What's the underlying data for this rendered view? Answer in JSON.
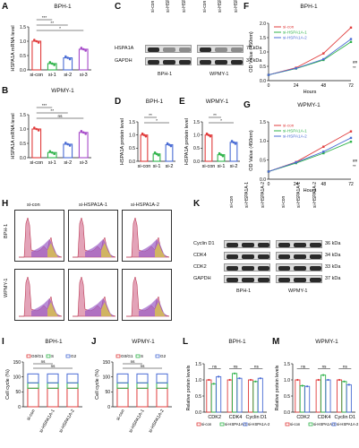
{
  "figure": {
    "A": {
      "letter": "A",
      "title": "BPH-1",
      "ylabel": "HSPA1A mRNA level",
      "yticks": [
        "0.0",
        "0.5",
        "1.0",
        "1.5"
      ],
      "ymax": 1.5,
      "categories": [
        "si-con",
        "si-1",
        "si-2",
        "si-3"
      ],
      "values": [
        1.0,
        0.22,
        0.42,
        0.72
      ],
      "colors": [
        "#e03c3c",
        "#2fb34a",
        "#4a6cd4",
        "#a64ac9"
      ],
      "sig": [
        "***",
        "**",
        "*"
      ]
    },
    "B": {
      "letter": "B",
      "title": "WPMY-1",
      "ylabel": "HSPA1A mRNA level",
      "yticks": [
        "0.0",
        "0.5",
        "1.0",
        "1.5"
      ],
      "ymax": 1.5,
      "categories": [
        "si-con",
        "si-1",
        "si-2",
        "si-3"
      ],
      "values": [
        1.0,
        0.18,
        0.47,
        0.88
      ],
      "colors": [
        "#e03c3c",
        "#2fb34a",
        "#4a6cd4",
        "#a64ac9"
      ],
      "sig": [
        "***",
        "**",
        "ns"
      ]
    },
    "C": {
      "letter": "C",
      "lanes": [
        "si-con",
        "si-HSPA1A-1",
        "si-HSPA1A-2",
        "si-con",
        "si-HSPA1A-1",
        "si-HSPA1A-2"
      ],
      "rows": [
        "HSPA1A",
        "GAPDH"
      ],
      "sizes": [
        "70 kDa",
        "37 kDa"
      ],
      "cells": [
        "BPH-1",
        "WPMY-1"
      ]
    },
    "D": {
      "letter": "D",
      "title": "BPH-1",
      "ylabel": "HSPA1A protein level",
      "yticks": [
        "0.0",
        "0.5",
        "1.0",
        "1.5"
      ],
      "ymax": 1.5,
      "categories": [
        "si-con",
        "si-1",
        "si-2"
      ],
      "values": [
        1.0,
        0.28,
        0.63
      ],
      "colors": [
        "#e03c3c",
        "#2fb34a",
        "#4a6cd4"
      ],
      "sig": [
        "**",
        "*"
      ]
    },
    "E": {
      "letter": "E",
      "title": "WPMY-1",
      "ylabel": "HSPA1A protein level",
      "yticks": [
        "0.0",
        "0.5",
        "1.0",
        "1.5"
      ],
      "ymax": 1.5,
      "categories": [
        "si-con",
        "si-1",
        "si-2"
      ],
      "values": [
        1.0,
        0.25,
        0.72
      ],
      "colors": [
        "#e03c3c",
        "#2fb34a",
        "#4a6cd4"
      ],
      "sig": [
        "**",
        "*"
      ]
    },
    "F": {
      "letter": "F",
      "title": "BPH-1",
      "ylabel": "OD Value (450nm)",
      "xlabel": "Hours",
      "xticks": [
        "0",
        "24",
        "48",
        "72"
      ],
      "yticks": [
        "0.0",
        "0.5",
        "1.0",
        "1.5",
        "2.0"
      ],
      "ymax": 2.0,
      "series": [
        {
          "name": "si-con",
          "color": "#e03c3c",
          "values": [
            0.2,
            0.45,
            0.95,
            1.85
          ]
        },
        {
          "name": "si-HSPA1A-1",
          "color": "#2fb34a",
          "values": [
            0.2,
            0.42,
            0.72,
            1.35
          ]
        },
        {
          "name": "si-HSPA1A-2",
          "color": "#4a6cd4",
          "values": [
            0.2,
            0.43,
            0.75,
            1.45
          ]
        }
      ],
      "marks": [
        "##",
        "**"
      ]
    },
    "G": {
      "letter": "G",
      "title": "WPMY-1",
      "ylabel": "OD Value (450nm)",
      "xlabel": "Hours",
      "xticks": [
        "0",
        "24",
        "48",
        "72"
      ],
      "yticks": [
        "0.0",
        "0.5",
        "1.0",
        "1.5"
      ],
      "ymax": 1.5,
      "series": [
        {
          "name": "si-con",
          "color": "#e03c3c",
          "values": [
            0.2,
            0.45,
            0.85,
            1.25
          ]
        },
        {
          "name": "si-HSPA1A-1",
          "color": "#2fb34a",
          "values": [
            0.2,
            0.42,
            0.68,
            0.98
          ]
        },
        {
          "name": "si-HSPA1A-2",
          "color": "#4a6cd4",
          "values": [
            0.2,
            0.44,
            0.72,
            1.08
          ]
        }
      ],
      "marks": [
        "##",
        "**"
      ]
    },
    "H": {
      "letter": "H",
      "columns": [
        "si-con",
        "si-HSPA1A-1",
        "si-HSPA1A-2"
      ],
      "rows": [
        "BPH-1",
        "WPMY-1"
      ]
    },
    "K": {
      "letter": "K",
      "lanes": [
        "si-con",
        "si-HSPA1A-1",
        "si-HSPA1A-2",
        "si-con",
        "si-HSPA1A-1",
        "si-HSPA1A-2"
      ],
      "rows": [
        "Cyclin D1",
        "CDK4",
        "CDK2",
        "GAPDH"
      ],
      "sizes": [
        "36 kDa",
        "34 kDa",
        "33 kDa",
        "37 kDa"
      ],
      "cells": [
        "BPH-1",
        "WPMY-1"
      ]
    },
    "I": {
      "letter": "I",
      "title": "BPH-1",
      "ylabel": "Cell cycle (%)",
      "yticks": [
        "0",
        "50",
        "100",
        "150"
      ],
      "legend": [
        "G0/G1",
        "S",
        "G2"
      ],
      "categories": [
        "si-con",
        "si-HSPA1A-1",
        "si-HSPA1A-2"
      ],
      "sig": [
        "ns",
        "ns"
      ]
    },
    "J": {
      "letter": "J",
      "title": "WPMY-1",
      "ylabel": "Cell cycle (%)",
      "yticks": [
        "0",
        "50",
        "100",
        "150"
      ],
      "legend": [
        "G0/G1",
        "S",
        "G2"
      ],
      "categories": [
        "si-con",
        "si-HSPA1A-1",
        "si-HSPA1A-2"
      ],
      "sig": [
        "ns",
        "ns"
      ]
    },
    "L": {
      "letter": "L",
      "title": "BPH-1",
      "ylabel": "Relative protein levels",
      "yticks": [
        "0.0",
        "0.5",
        "1.0",
        "1.5"
      ],
      "ymax": 1.5,
      "groups": [
        "CDK2",
        "CDK4",
        "Cyclin D1"
      ],
      "series": [
        {
          "name": "si-con",
          "color": "#e03c3c",
          "values": [
            1.0,
            1.0,
            1.0
          ]
        },
        {
          "name": "si-HSPA1A-1",
          "color": "#2fb34a",
          "values": [
            0.88,
            1.2,
            0.95
          ]
        },
        {
          "name": "si-HSPA1A-2",
          "color": "#4a6cd4",
          "values": [
            1.1,
            1.05,
            1.05
          ]
        }
      ],
      "sig": [
        "ns",
        "ns",
        "ns"
      ]
    },
    "M": {
      "letter": "M",
      "title": "WPMY-1",
      "ylabel": "Relative protein levels",
      "yticks": [
        "0.0",
        "0.5",
        "1.0",
        "1.5"
      ],
      "ymax": 1.5,
      "groups": [
        "CDK2",
        "CDK4",
        "Cyclin D1"
      ],
      "series": [
        {
          "name": "si-con",
          "color": "#e03c3c",
          "values": [
            1.0,
            1.0,
            1.0
          ]
        },
        {
          "name": "si-HSPA1A-1",
          "color": "#2fb34a",
          "values": [
            0.82,
            1.15,
            0.95
          ]
        },
        {
          "name": "si-HSPA1A-2",
          "color": "#4a6cd4",
          "values": [
            0.8,
            1.0,
            0.85
          ]
        }
      ],
      "sig": [
        "ns",
        "ns",
        "ns"
      ]
    }
  }
}
